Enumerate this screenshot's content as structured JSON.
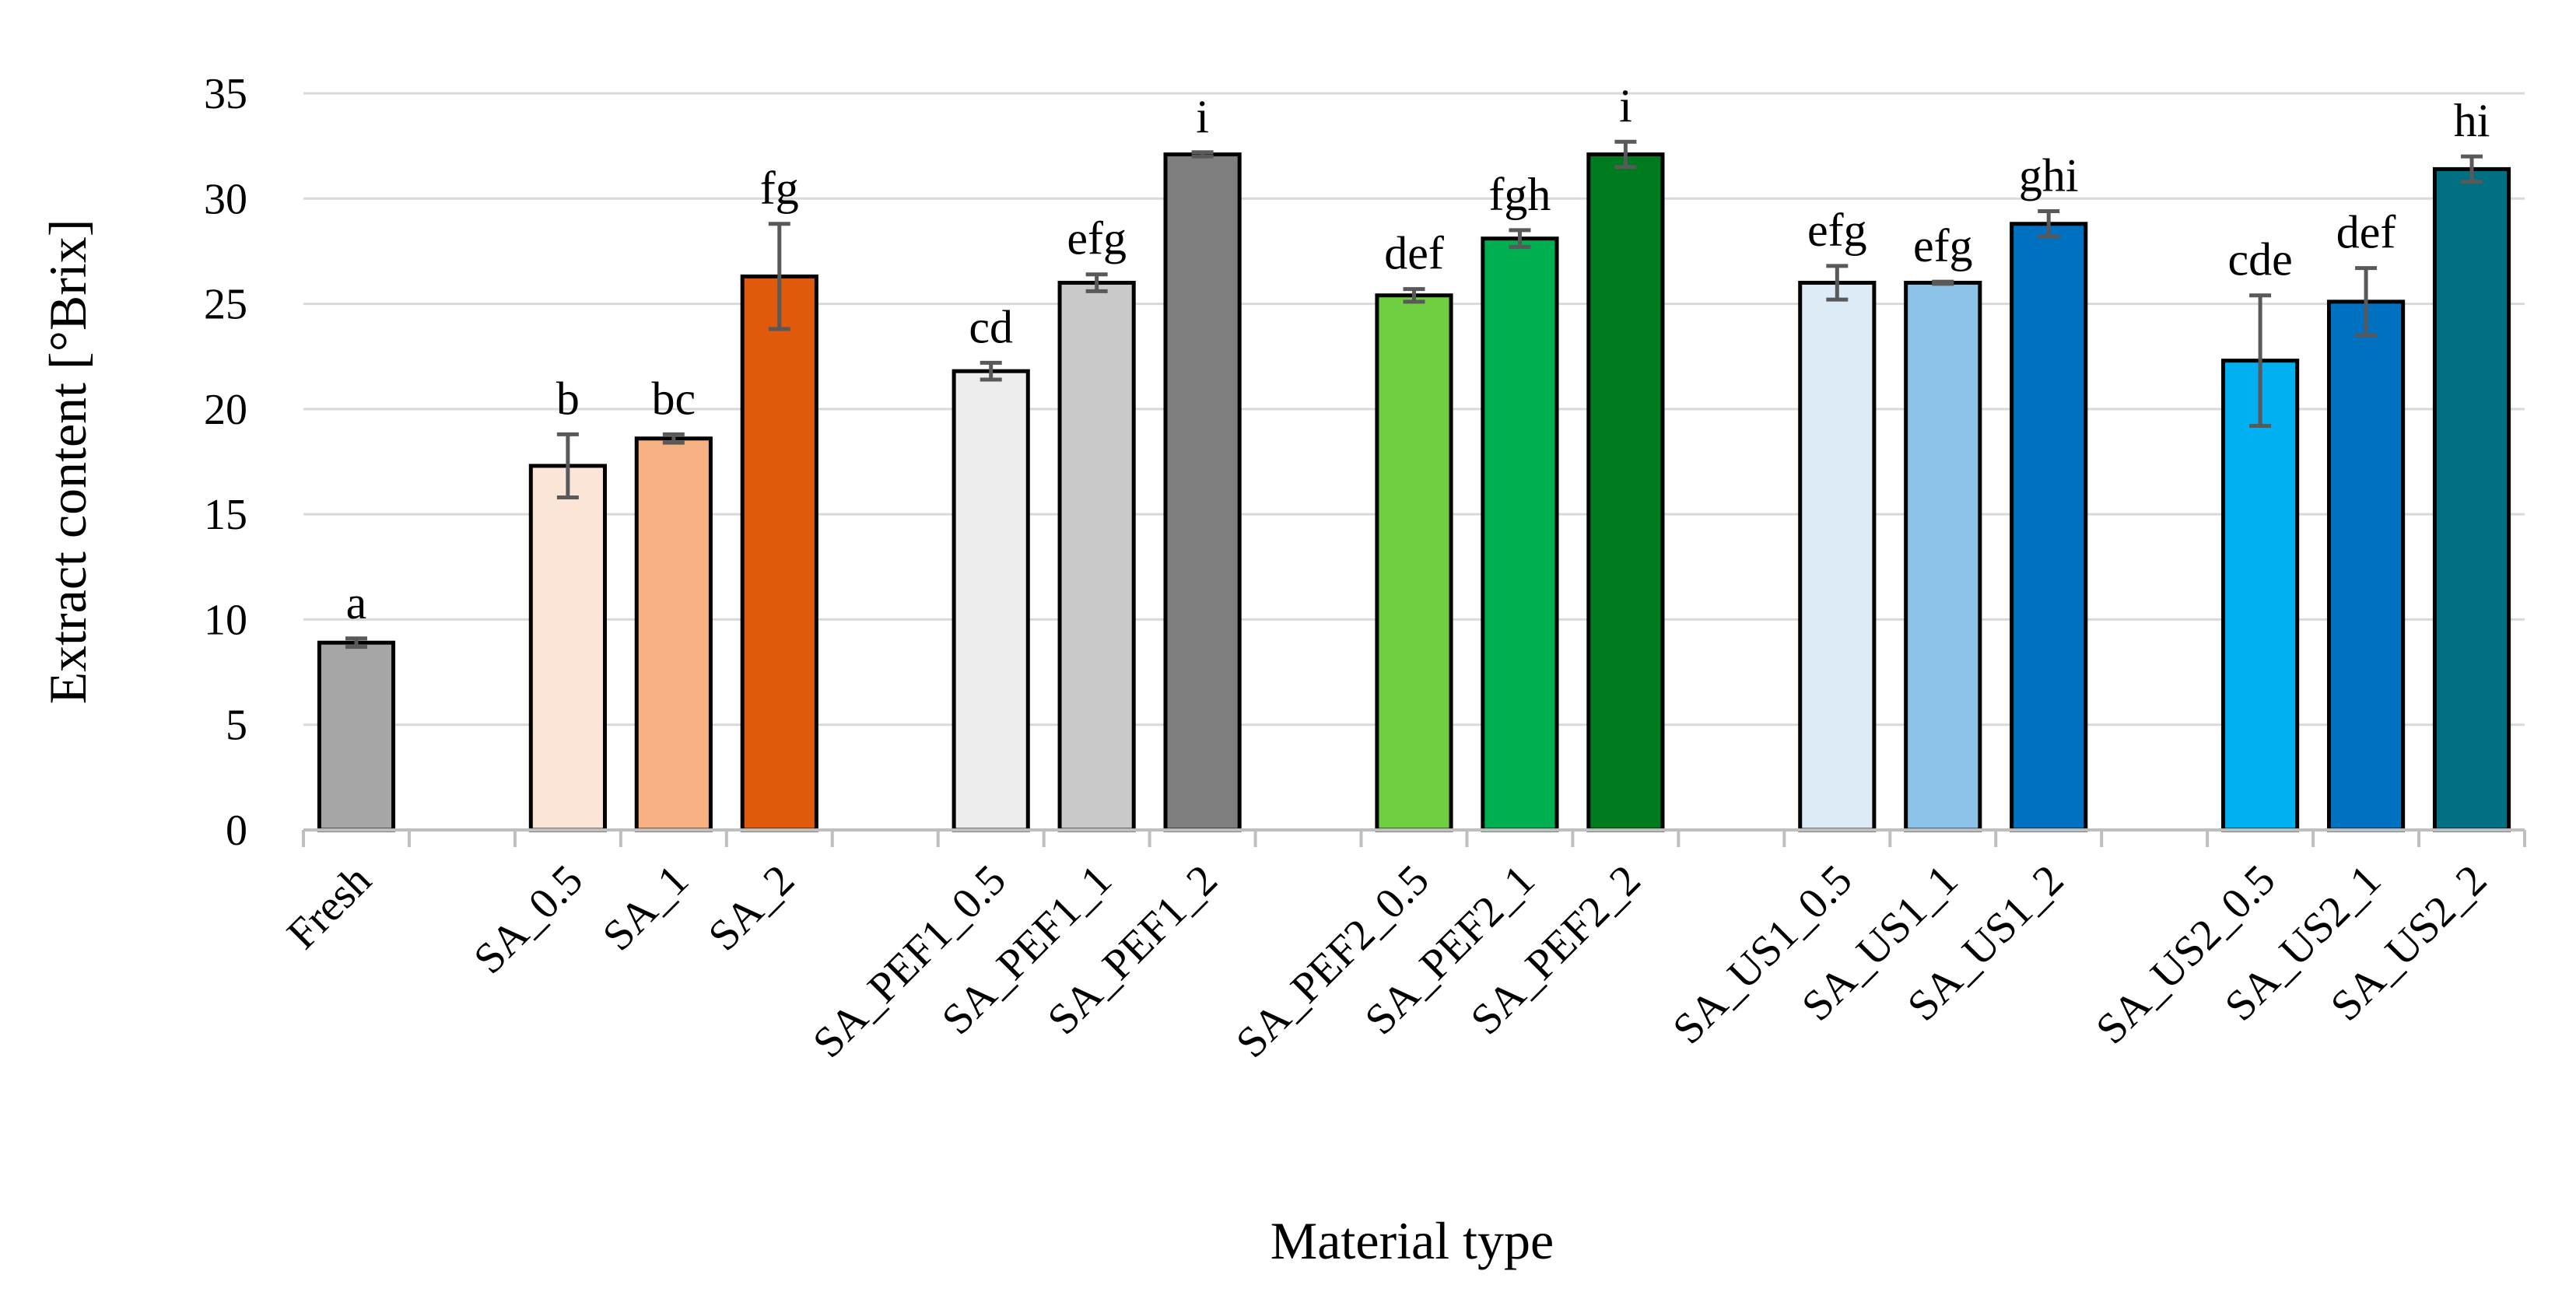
{
  "chart_data": {
    "type": "bar",
    "title": "",
    "xlabel": "Material type",
    "ylabel": "Extract content [°Brix]",
    "ylim": [
      0,
      35
    ],
    "ytick_step": 5,
    "grid": "horizontal",
    "legend": "none",
    "error_bar_color": "#595959",
    "categories": [
      "Fresh",
      "",
      "SA_0.5",
      "SA_1",
      "SA_2",
      "",
      "SA_PEF1_0.5",
      "SA_PEF1_1",
      "SA_PEF1_2",
      "",
      "SA_PEF2_0.5",
      "SA_PEF2_1",
      "SA_PEF2_2",
      "",
      "SA_US1_0.5",
      "SA_US1_1",
      "SA_US1_2",
      "",
      "SA_US2_0.5",
      "SA_US2_1",
      "SA_US2_2"
    ],
    "values": [
      8.9,
      null,
      17.3,
      18.6,
      26.3,
      null,
      21.8,
      26.0,
      32.1,
      null,
      25.4,
      28.1,
      32.1,
      null,
      26.0,
      26.0,
      28.8,
      null,
      22.3,
      25.1,
      31.4
    ],
    "errors": [
      0.2,
      null,
      1.5,
      0.2,
      2.5,
      null,
      0.4,
      0.4,
      0.1,
      null,
      0.3,
      0.4,
      0.6,
      null,
      0.8,
      0.05,
      0.6,
      null,
      3.1,
      1.6,
      0.6
    ],
    "letters": [
      "a",
      "",
      "b",
      "bc",
      "fg",
      "",
      "cd",
      "efg",
      "i",
      "",
      "def",
      "fgh",
      "i",
      "",
      "efg",
      "efg",
      "ghi",
      "",
      "cde",
      "def",
      "hi"
    ],
    "colors": [
      "#A6A6A6",
      "",
      "#FBE5D6",
      "#F8B183",
      "#E05A0C",
      "",
      "#EDEDED",
      "#C9C9C9",
      "#7F7F7F",
      "",
      "#70CF40",
      "#00B050",
      "#007A1F",
      "",
      "#DDEBF7",
      "#8DC3E8",
      "#0070C0",
      "",
      "#00B0F0",
      "#0070C0",
      "#007082"
    ]
  }
}
